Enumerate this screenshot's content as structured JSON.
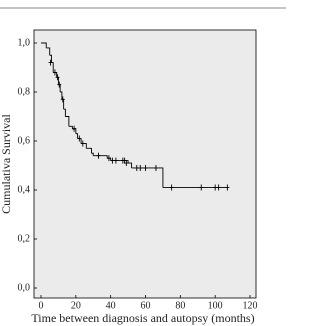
{
  "chart_data": {
    "type": "step",
    "xlabel": "Time between diagnosis and autopsy (months)",
    "ylabel": "Cumulativa Survival",
    "xlim": [
      0,
      120
    ],
    "ylim": [
      0,
      1
    ],
    "xticks": [
      0,
      20,
      40,
      60,
      80,
      100,
      120
    ],
    "yticks": [
      {
        "value": 0,
        "label": "0,0"
      },
      {
        "value": 0.2,
        "label": "0,2"
      },
      {
        "value": 0.4,
        "label": "0,4"
      },
      {
        "value": 0.6,
        "label": "0,6"
      },
      {
        "value": 0.8,
        "label": "0,8"
      },
      {
        "value": 1,
        "label": "1,0"
      }
    ],
    "color": "#000000",
    "steps": {
      "x": [
        0,
        3,
        5,
        6,
        7,
        9,
        10,
        11,
        12,
        13,
        14,
        16,
        18,
        20,
        21,
        23,
        26,
        29,
        30,
        38,
        40,
        50,
        52,
        70,
        107
      ],
      "y": [
        1.0,
        0.98,
        0.95,
        0.92,
        0.88,
        0.86,
        0.83,
        0.8,
        0.77,
        0.73,
        0.7,
        0.66,
        0.65,
        0.63,
        0.61,
        0.59,
        0.57,
        0.55,
        0.54,
        0.53,
        0.52,
        0.51,
        0.49,
        0.41,
        0.41
      ]
    },
    "censored": {
      "x": [
        5.5,
        8,
        9.5,
        10.5,
        12.5,
        19,
        22,
        24,
        33,
        39,
        41,
        43,
        47,
        48,
        49,
        55,
        57,
        60,
        66,
        75,
        92,
        100,
        102,
        107
      ],
      "y": [
        0.92,
        0.88,
        0.86,
        0.83,
        0.77,
        0.65,
        0.61,
        0.59,
        0.54,
        0.53,
        0.52,
        0.52,
        0.52,
        0.52,
        0.51,
        0.49,
        0.49,
        0.49,
        0.49,
        0.41,
        0.41,
        0.41,
        0.41,
        0.41
      ]
    }
  }
}
